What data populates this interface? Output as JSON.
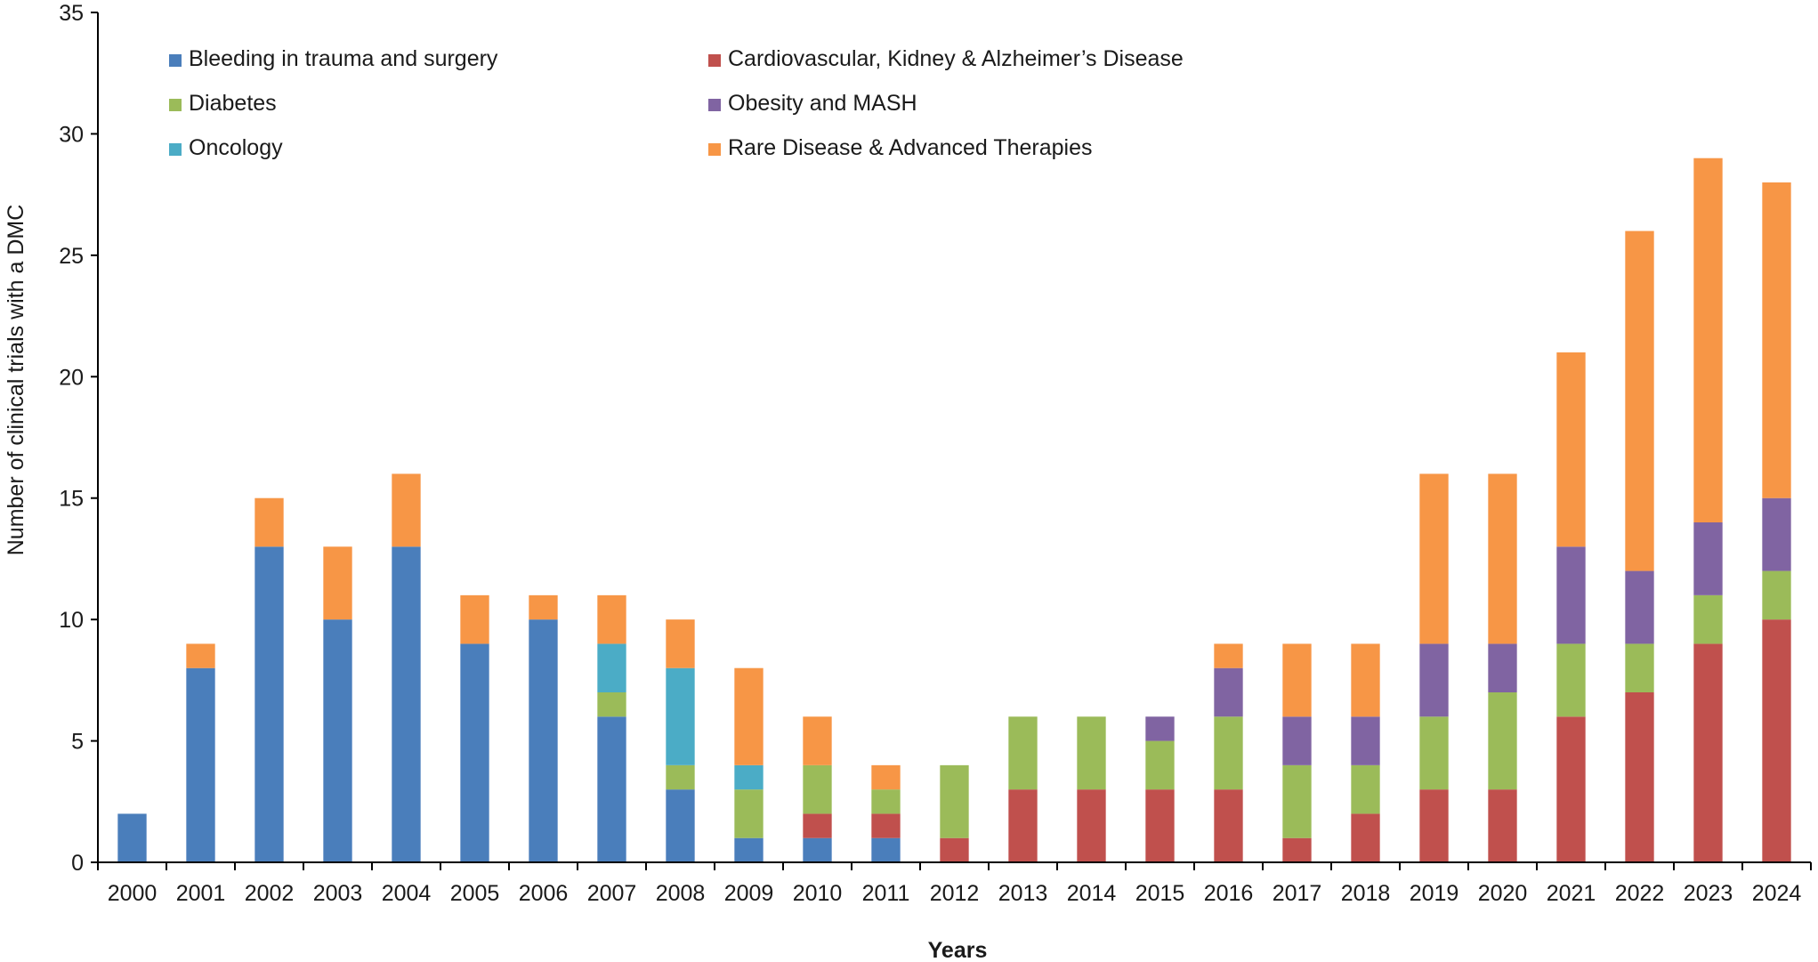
{
  "chart_data": {
    "type": "bar",
    "stacked": true,
    "title": "",
    "xlabel": "Years",
    "ylabel": "Number of clinical trials with a DMC",
    "ylim": [
      0,
      35
    ],
    "yticks": [
      0,
      5,
      10,
      15,
      20,
      25,
      30,
      35
    ],
    "grid": false,
    "legend_position": "top",
    "categories": [
      "2000",
      "2001",
      "2002",
      "2003",
      "2004",
      "2005",
      "2006",
      "2007",
      "2008",
      "2009",
      "2010",
      "2011",
      "2012",
      "2013",
      "2014",
      "2015",
      "2016",
      "2017",
      "2018",
      "2019",
      "2020",
      "2021",
      "2022",
      "2023",
      "2024"
    ],
    "series": [
      {
        "name": "Bleeding in trauma and surgery",
        "color": "#4A7EBB",
        "values": [
          2,
          8,
          13,
          10,
          13,
          9,
          10,
          6,
          3,
          1,
          1,
          1,
          0,
          0,
          0,
          0,
          0,
          0,
          0,
          0,
          0,
          0,
          0,
          0,
          0
        ]
      },
      {
        "name": "Cardiovascular, Kidney & Alzheimer’s Disease",
        "color": "#C0504D",
        "values": [
          0,
          0,
          0,
          0,
          0,
          0,
          0,
          0,
          0,
          0,
          1,
          1,
          1,
          3,
          3,
          3,
          3,
          1,
          2,
          3,
          3,
          6,
          7,
          9,
          10
        ]
      },
      {
        "name": "Diabetes",
        "color": "#9BBB59",
        "values": [
          0,
          0,
          0,
          0,
          0,
          0,
          0,
          1,
          1,
          2,
          2,
          1,
          3,
          3,
          3,
          2,
          3,
          3,
          2,
          3,
          4,
          3,
          2,
          2,
          2
        ]
      },
      {
        "name": "Obesity and MASH",
        "color": "#8064A2",
        "values": [
          0,
          0,
          0,
          0,
          0,
          0,
          0,
          0,
          0,
          0,
          0,
          0,
          0,
          0,
          0,
          1,
          2,
          2,
          2,
          3,
          2,
          4,
          3,
          3,
          3
        ]
      },
      {
        "name": "Oncology",
        "color": "#4BACC6",
        "values": [
          0,
          0,
          0,
          0,
          0,
          0,
          0,
          2,
          4,
          1,
          0,
          0,
          0,
          0,
          0,
          0,
          0,
          0,
          0,
          0,
          0,
          0,
          0,
          0,
          0
        ]
      },
      {
        "name": "Rare Disease & Advanced Therapies",
        "color": "#F79646",
        "values": [
          0,
          1,
          2,
          3,
          3,
          2,
          1,
          2,
          2,
          4,
          2,
          1,
          0,
          0,
          0,
          0,
          1,
          3,
          3,
          7,
          7,
          8,
          14,
          15,
          13
        ]
      }
    ]
  }
}
